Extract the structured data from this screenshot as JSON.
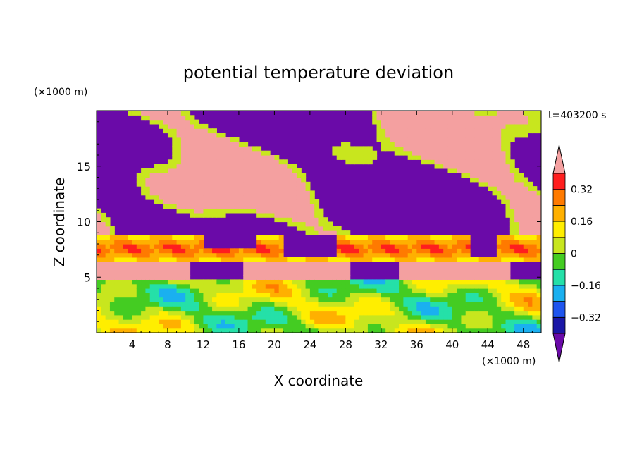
{
  "chart_data": {
    "type": "heatmap",
    "title": "potential temperature deviation",
    "xlabel": "X coordinate",
    "ylabel": "Z coordinate",
    "x_unit": "(×1000 m)",
    "y_unit": "(×1000 m)",
    "time_label": "t=403200 s",
    "xlim": [
      0,
      50
    ],
    "ylim": [
      0,
      20
    ],
    "x_ticks": [
      4,
      8,
      12,
      16,
      20,
      24,
      28,
      32,
      36,
      40,
      44,
      48
    ],
    "y_ticks": [
      5,
      10,
      15
    ],
    "colorbar": {
      "levels": [
        -0.4,
        -0.32,
        -0.24,
        -0.16,
        -0.08,
        0,
        0.08,
        0.16,
        0.24,
        0.32,
        0.4
      ],
      "colors": [
        "#6a0aa8",
        "#1a17a6",
        "#1f55ee",
        "#1ab0f0",
        "#25e0a8",
        "#44cc22",
        "#c8e61e",
        "#ffee00",
        "#ffb000",
        "#ff7a00",
        "#ff1e1e",
        "#f4a0a0"
      ],
      "tick_labels": [
        "0.32",
        "0.16",
        "0",
        "−0.16",
        "−0.32"
      ],
      "tick_values": [
        0.32,
        0.16,
        0,
        -0.16,
        -0.32
      ]
    }
  }
}
